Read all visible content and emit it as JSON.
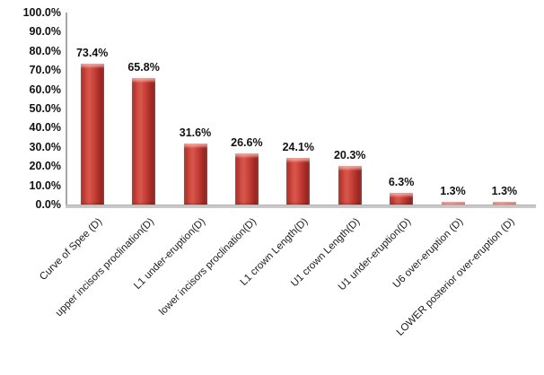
{
  "chart_data": {
    "type": "bar",
    "title": "",
    "xlabel": "",
    "ylabel": "",
    "categories": [
      "Curve of Spee (D)",
      "upper incisors proclination(D)",
      "L1 under-eruption(D)",
      "lower incisors proclination(D)",
      "L1 crown Length(D)",
      "U1 crown Length(D)",
      "U1 under-eruption(D)",
      "U6 over-eruption (D)",
      "LOWER posterior over-eruption (D)"
    ],
    "values": [
      73.4,
      65.8,
      31.6,
      26.6,
      24.1,
      20.3,
      6.3,
      1.3,
      1.3
    ],
    "data_labels": [
      "73.4%",
      "65.8%",
      "31.6%",
      "26.6%",
      "24.1%",
      "20.3%",
      "6.3%",
      "1.3%",
      "1.3%"
    ],
    "y_ticks": [
      "100.0%",
      "90.0%",
      "80.0%",
      "70.0%",
      "60.0%",
      "50.0%",
      "40.0%",
      "30.0%",
      "20.0%",
      "10.0%",
      "0.0%"
    ],
    "ylim": [
      0,
      100
    ],
    "y_tick_step": 10,
    "grid": false,
    "legend": "none",
    "x_label_rotation_deg": -45,
    "colors": {
      "bar_fill_main": "#c8423a",
      "bar_fill_light": "#d8564c",
      "bar_fill_dark": "#8e231e",
      "bar_bevel_highlight": "#e8857c",
      "y_axis_line": "#a6a6a6",
      "x_axis_line": "#c9c9c9",
      "text": "#111111",
      "background": "#ffffff"
    }
  }
}
